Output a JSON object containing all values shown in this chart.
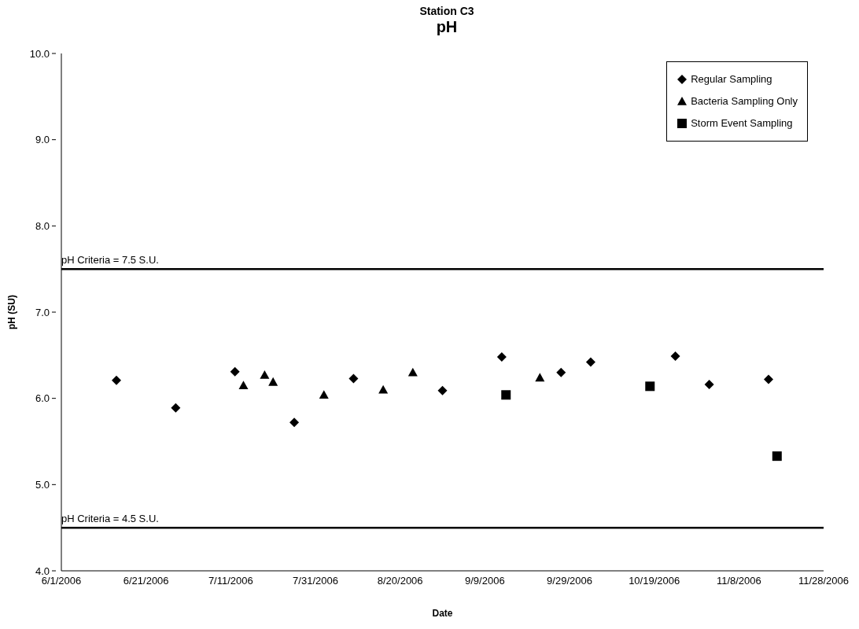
{
  "chart_data": {
    "type": "scatter",
    "title": "Station C3",
    "subtitle": "pH",
    "xlabel": "Date",
    "ylabel": "pH (SU)",
    "xlim": [
      "2006-06-01",
      "2006-11-28"
    ],
    "xticks": [
      {
        "value": "2006-06-01",
        "label": "6/1/2006"
      },
      {
        "value": "2006-06-21",
        "label": "6/21/2006"
      },
      {
        "value": "2006-07-11",
        "label": "7/11/2006"
      },
      {
        "value": "2006-07-31",
        "label": "7/31/2006"
      },
      {
        "value": "2006-08-20",
        "label": "8/20/2006"
      },
      {
        "value": "2006-09-09",
        "label": "9/9/2006"
      },
      {
        "value": "2006-09-29",
        "label": "9/29/2006"
      },
      {
        "value": "2006-10-19",
        "label": "10/19/2006"
      },
      {
        "value": "2006-11-08",
        "label": "11/8/2006"
      },
      {
        "value": "2006-11-28",
        "label": "11/28/2006"
      }
    ],
    "ylim": [
      4,
      10
    ],
    "yticks": [
      {
        "value": 4,
        "label": "4.0"
      },
      {
        "value": 5,
        "label": "5.0"
      },
      {
        "value": 6,
        "label": "6.0"
      },
      {
        "value": 7,
        "label": "7.0"
      },
      {
        "value": 8,
        "label": "8.0"
      },
      {
        "value": 9,
        "label": "9.0"
      },
      {
        "value": 10,
        "label": "10.0"
      }
    ],
    "grid": false,
    "legend": "top right",
    "ref_lines": [
      {
        "axis": "y",
        "value": 7.5,
        "label": "pH Criteria = 7.5 S.U.",
        "color": "#000000"
      },
      {
        "axis": "y",
        "value": 4.5,
        "label": "pH Criteria = 4.5 S.U.",
        "color": "#000000"
      }
    ],
    "series": [
      {
        "name": "Regular Sampling",
        "color": "#000000",
        "marker": "diamond",
        "x": [
          "2006-06-14",
          "2006-06-28",
          "2006-07-12",
          "2006-07-26",
          "2006-08-09",
          "2006-08-30",
          "2006-09-13",
          "2006-09-27",
          "2006-10-04",
          "2006-10-24",
          "2006-11-01",
          "2006-11-15"
        ],
        "values": [
          6.21,
          5.89,
          6.31,
          5.72,
          6.23,
          6.09,
          6.48,
          6.3,
          6.42,
          6.49,
          6.16,
          6.22
        ]
      },
      {
        "name": "Bacteria Sampling Only",
        "color": "#000000",
        "marker": "triangle",
        "x": [
          "2006-07-14",
          "2006-07-19",
          "2006-07-21",
          "2006-08-02",
          "2006-08-16",
          "2006-08-23",
          "2006-09-22"
        ],
        "values": [
          6.15,
          6.27,
          6.19,
          6.04,
          6.1,
          6.3,
          6.24
        ]
      },
      {
        "name": "Storm Event Sampling",
        "color": "#000000",
        "marker": "square",
        "x": [
          "2006-09-14",
          "2006-10-18",
          "2006-11-17"
        ],
        "values": [
          6.04,
          6.14,
          5.33
        ]
      }
    ]
  }
}
